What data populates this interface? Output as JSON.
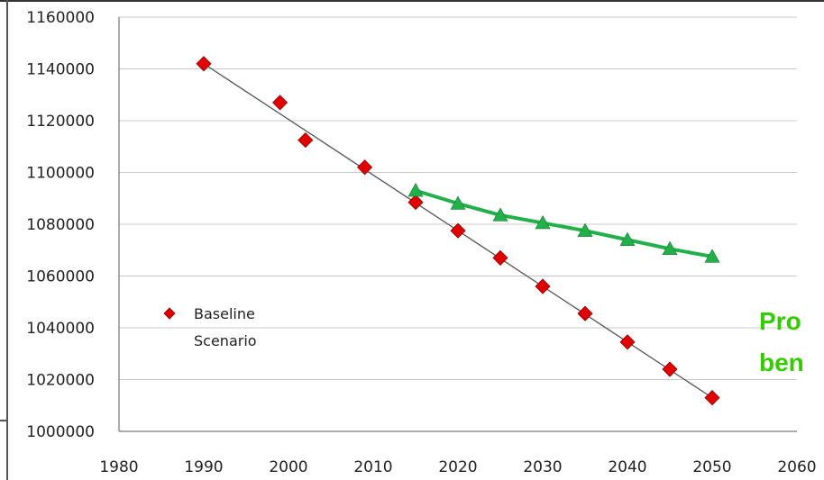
{
  "chart_data": {
    "type": "scatter",
    "title": "",
    "xlabel": "",
    "ylabel": "",
    "xlim": [
      1980,
      2060
    ],
    "ylim": [
      1000000,
      1160000
    ],
    "x_ticks": [
      1980,
      1990,
      2000,
      2010,
      2020,
      2030,
      2040,
      2050,
      2060
    ],
    "y_ticks": [
      1000000,
      1020000,
      1040000,
      1060000,
      1080000,
      1100000,
      1120000,
      1140000,
      1160000
    ],
    "grid": "horizontal",
    "legend_position": "lower-left",
    "series": [
      {
        "name": "Baseline Scenario",
        "marker": "diamond",
        "color": "#e00000",
        "x": [
          1990,
          1999,
          2002,
          2009,
          2015,
          2020,
          2025,
          2030,
          2035,
          2040,
          2045,
          2050
        ],
        "y": [
          1142000,
          1127000,
          1112500,
          1102000,
          1088500,
          1077500,
          1067000,
          1056000,
          1045500,
          1034500,
          1024000,
          1013000
        ]
      },
      {
        "marker": "triangle",
        "color": "#22b04a",
        "x": [
          2015,
          2020,
          2025,
          2030,
          2035,
          2040,
          2045,
          2050
        ],
        "y": [
          1093000,
          1088000,
          1083500,
          1080500,
          1077500,
          1074000,
          1070500,
          1067500
        ]
      }
    ],
    "trendline": {
      "color": "#555555",
      "x": [
        1990,
        2050
      ],
      "y": [
        1142000,
        1013000
      ]
    },
    "annotation": {
      "lines": [
        "Pro",
        "ben"
      ],
      "color": "#33cc00"
    }
  }
}
